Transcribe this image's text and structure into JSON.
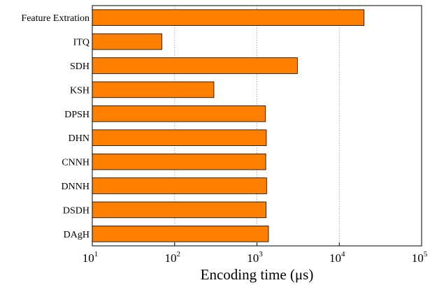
{
  "chart_data": {
    "type": "bar",
    "orientation": "horizontal",
    "categories": [
      "Feature Extration",
      "ITQ",
      "SDH",
      "KSH",
      "DPSH",
      "DHN",
      "CNNH",
      "DNNH",
      "DSDH",
      "DAgH"
    ],
    "values": [
      20000,
      70,
      3100,
      300,
      1270,
      1300,
      1280,
      1310,
      1290,
      1380
    ],
    "title": "",
    "xlabel": "Encoding time (μs)",
    "ylabel": "",
    "xscale": "log",
    "xlim": [
      10,
      100000
    ],
    "xticks": [
      {
        "base": "10",
        "exp": "1"
      },
      {
        "base": "10",
        "exp": "2"
      },
      {
        "base": "10",
        "exp": "3"
      },
      {
        "base": "10",
        "exp": "4"
      },
      {
        "base": "10",
        "exp": "5"
      }
    ],
    "grid": "vertical-dotted",
    "bar_color": "#ff8000"
  }
}
